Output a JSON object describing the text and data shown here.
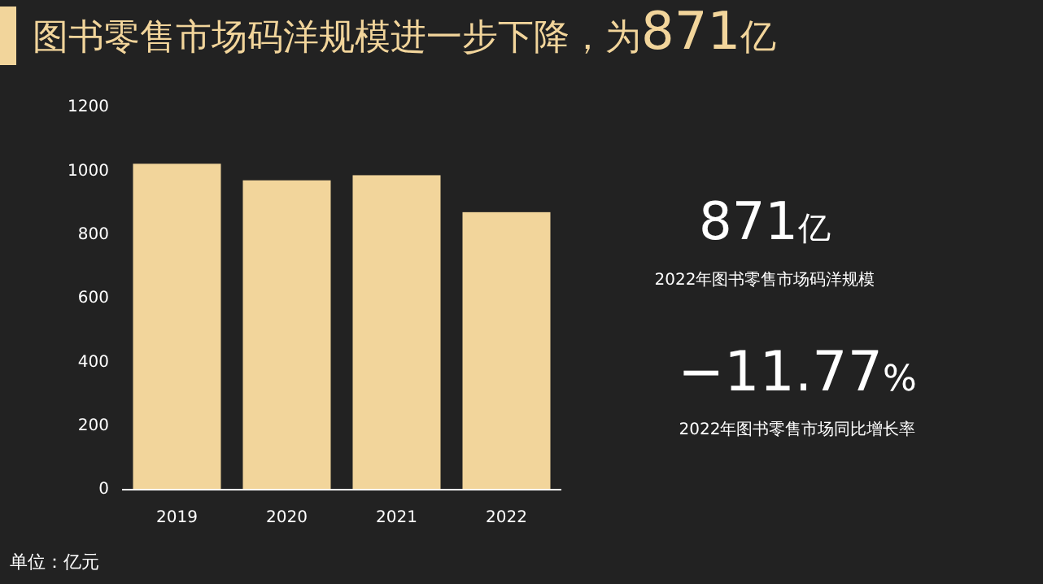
{
  "chart_data": {
    "type": "bar",
    "title": "图书零售市场码洋规模进一步下降，为871亿",
    "categories": [
      "2019",
      "2020",
      "2021",
      "2022"
    ],
    "values": [
      1023,
      971,
      987,
      871
    ],
    "color": "#f2d59b",
    "ylim": [
      0,
      1200
    ],
    "yticks": [
      0,
      200,
      400,
      600,
      800,
      1000,
      1200
    ],
    "grid": false,
    "annotations": [
      "871亿",
      "2022年图书零售市场码洋规模",
      "−11.77%",
      "2022年图书零售市场同比增长率",
      "单位：亿元"
    ]
  }
}
